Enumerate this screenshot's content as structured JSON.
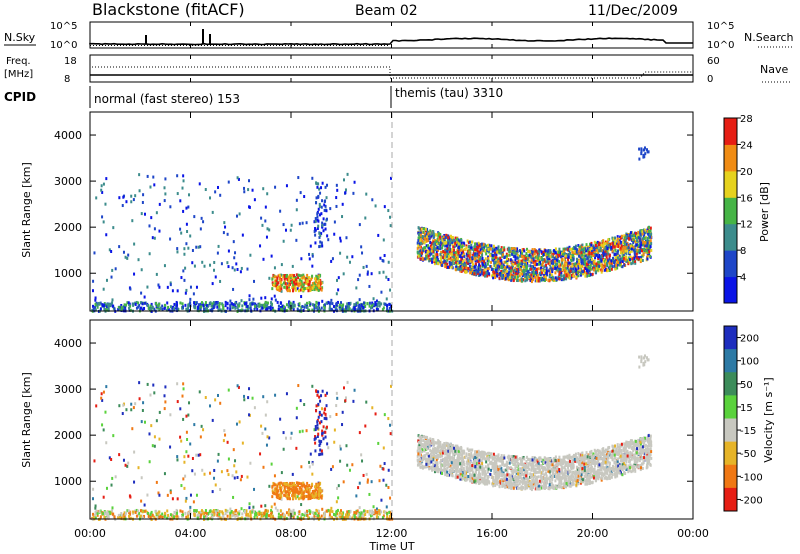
{
  "header": {
    "station": "Blackstone (fitACF)",
    "beam": "Beam 02",
    "date": "11/Dec/2009"
  },
  "labels": {
    "nsky": "N.Sky",
    "nsearch": "N.Search",
    "freq": "Freq.",
    "mhz": "[MHz]",
    "nave": "Nave",
    "cpid": "CPID",
    "slant_range": "Slant Range [km]",
    "time_ut": "Time UT",
    "power": "Power [dB]",
    "velocity": "Velocity [m s⁻¹]"
  },
  "noise_panel": {
    "left_ticks": [
      "10^5",
      "10^0"
    ],
    "right_ticks": [
      "10^5",
      "10^0"
    ]
  },
  "freq_panel": {
    "left_ticks": [
      "18",
      "8"
    ],
    "right_ticks": [
      "60",
      "0"
    ]
  },
  "cpid_segments": [
    {
      "label": "normal (fast stereo) 153",
      "start_hour": 0,
      "end_hour": 12
    },
    {
      "label": "themis (tau) 3310",
      "start_hour": 12,
      "end_hour": 24
    }
  ],
  "chart_data": {
    "type": "heatmap",
    "title": "Blackstone (fitACF)",
    "xlabel": "Time UT",
    "ylabel": "Slant Range [km]",
    "x_ticks": [
      "00:00",
      "04:00",
      "08:00",
      "12:00",
      "16:00",
      "20:00",
      "00:00"
    ],
    "x_range_hours": [
      0,
      24
    ],
    "y_ticks": [
      1000,
      2000,
      3000,
      4000
    ],
    "y_range_km": [
      180,
      4500
    ],
    "panels": [
      {
        "name": "Power",
        "colorbar_label": "Power [dB]",
        "colorbar_ticks": [
          4,
          8,
          12,
          16,
          20,
          24,
          28
        ],
        "colorbar_colors": [
          "#0a14e6",
          "#1e46c8",
          "#3c8c8c",
          "#46b446",
          "#e6d21e",
          "#f08c14",
          "#e61e14"
        ]
      },
      {
        "name": "Velocity",
        "colorbar_label": "Velocity [m s⁻¹]",
        "colorbar_ticks": [
          200,
          100,
          50,
          15,
          -15,
          -50,
          -100,
          -200
        ],
        "colorbar_colors": [
          "#1e2ebe",
          "#2d7aa5",
          "#3c8c5a",
          "#5ad23c",
          "#c8c8c0",
          "#e6b428",
          "#f07814",
          "#e61e14"
        ]
      }
    ]
  }
}
